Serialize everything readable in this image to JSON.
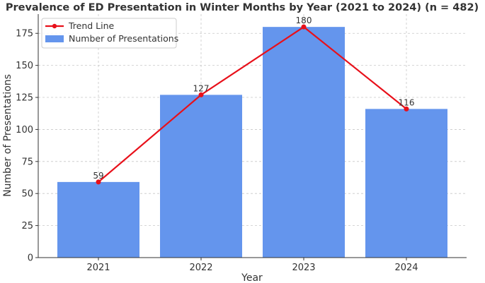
{
  "chart_data": {
    "type": "bar",
    "title": "Prevalence of ED Presentation in Winter Months by Year (2021 to 2024) (n = 482)",
    "xlabel": "Year",
    "ylabel": "Number of Presentations",
    "categories": [
      "2021",
      "2022",
      "2023",
      "2024"
    ],
    "series": [
      {
        "name": "Number of Presentations",
        "kind": "bar",
        "values": [
          59,
          127,
          180,
          116
        ],
        "color": "#6495ED"
      },
      {
        "name": "Trend Line",
        "kind": "line",
        "values": [
          59,
          127,
          180,
          116
        ],
        "color": "#E8101A"
      }
    ],
    "data_labels": [
      "59",
      "127",
      "180",
      "116"
    ],
    "ylim": [
      0,
      190
    ],
    "yticks": [
      0,
      25,
      50,
      75,
      100,
      125,
      150,
      175
    ],
    "grid": true,
    "legend_position": "top-left"
  }
}
